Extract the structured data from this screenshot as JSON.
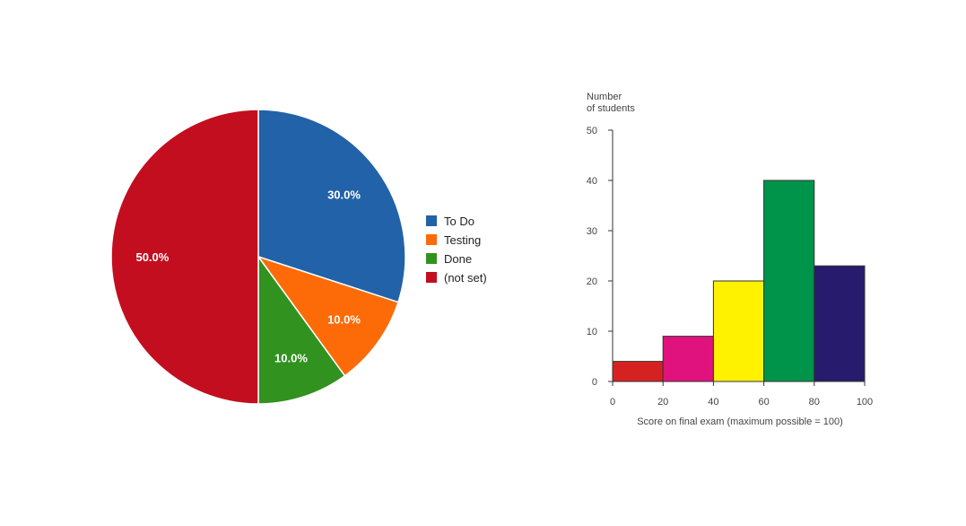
{
  "chart_data": [
    {
      "type": "pie",
      "labels": [
        "To Do",
        "Testing",
        "Done",
        "(not set)"
      ],
      "values": [
        30.0,
        10.0,
        10.0,
        50.0
      ],
      "value_labels": [
        "30.0%",
        "10.0%",
        "10.0%",
        "50.0%"
      ],
      "colors": [
        "#2162a8",
        "#fc6b08",
        "#31921f",
        "#c30e1f"
      ],
      "legend": "right"
    },
    {
      "type": "bar",
      "bins": [
        [
          0,
          20
        ],
        [
          20,
          40
        ],
        [
          40,
          60
        ],
        [
          60,
          80
        ],
        [
          80,
          100
        ]
      ],
      "values": [
        4,
        9,
        20,
        40,
        23
      ],
      "colors": [
        "#d52221",
        "#e0137e",
        "#fff200",
        "#00944a",
        "#261b6c"
      ],
      "xlabel": "Score on final exam (maximum possible = 100)",
      "ylabel_lines": [
        "Number",
        "of students"
      ],
      "xticks": [
        "0",
        "20",
        "40",
        "60",
        "80",
        "100"
      ],
      "yticks": [
        "0",
        "10",
        "20",
        "30",
        "40",
        "50"
      ],
      "xlim": [
        0,
        100
      ],
      "ylim": [
        0,
        50
      ],
      "grid": false
    }
  ]
}
